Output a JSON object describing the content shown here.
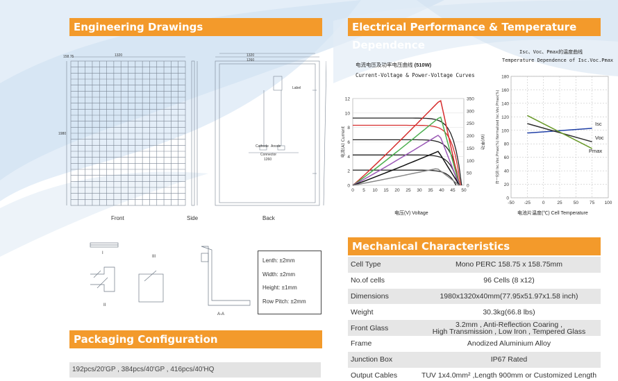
{
  "sections": {
    "engineering": "Engineering Drawings",
    "electrical": "Electrical Performance & Temperature Dependence",
    "packaging": "Packaging Configuration",
    "mechanical": "Mechanical Characteristics"
  },
  "drawings": {
    "front_label": "Front",
    "side_label": "Side",
    "back_label": "Back",
    "front_dims": [
      "1320",
      "158.75",
      "1980"
    ],
    "back_dims": [
      "1320",
      "1260",
      "Cathode",
      "Anode",
      "Connector",
      "1260",
      "Label"
    ],
    "section_labels": [
      "I",
      "II",
      "III",
      "A-A"
    ],
    "tolerances": [
      "Lenth: ±2mm",
      "Width: ±2mm",
      "Height: ±1mm",
      "Row Pitch: ±2mm"
    ]
  },
  "packaging": {
    "text": "192pcs/20'GP , 384pcs/40'GP , 416pcs/40'HQ"
  },
  "iv_chart": {
    "title_cn": "电流电压及功率电压曲线",
    "title_watt": "(510W)",
    "title_en": "Current-Voltage & Power-Voltage Curves",
    "ylabel_left": "电流(A) Current",
    "ylabel_right": "(W)率功",
    "xlabel": "电压(V) Voltage"
  },
  "temp_chart": {
    "title_cn": "Isc、Voc、Pmax的温度曲线",
    "title_en": "Temperature Dependence of Isc.Voc.Pmax",
    "ylabel": "归一化的 Isc.Voc.Pmax(%)  Normalized Isc.Voc.Pmax(%)",
    "xlabel": "电池片温度(℃)  Cell Temperature",
    "series_labels": [
      "Isc",
      "Voc",
      "Pmax"
    ]
  },
  "chart_data": [
    {
      "type": "line",
      "title": "电流电压及功率电压曲线 (510W)",
      "subtitle": "Current-Voltage & Power-Voltage Curves",
      "xlabel": "电压(V) Voltage",
      "ylabel": "电流(A) Current",
      "x_ticks": [
        0,
        5,
        10,
        15,
        20,
        25,
        30,
        35,
        40,
        45,
        50
      ],
      "y_ticks_left": [
        0,
        2,
        4,
        6,
        8,
        10,
        12
      ],
      "y_ticks_right": [
        0,
        50,
        100,
        150,
        200,
        250,
        300,
        350
      ],
      "xlim": [
        0,
        50
      ],
      "ylim": [
        0,
        12
      ],
      "y2lim": [
        0,
        350
      ],
      "iv_series": [
        {
          "color": "#222222",
          "isc": 9.3,
          "voc": 49.0
        },
        {
          "color": "#d62d2d",
          "isc": 8.3,
          "voc": 48.5
        },
        {
          "color": "#222222",
          "isc": 6.3,
          "voc": 48.0
        },
        {
          "color": "#222222",
          "isc": 4.2,
          "voc": 47.5
        },
        {
          "color": "#222222",
          "isc": 2.1,
          "voc": 46.5
        }
      ],
      "pv_series": [
        {
          "color": "#d62d2d",
          "pmax": 345,
          "vmp": 39.5
        },
        {
          "color": "#4caf50",
          "pmax": 278,
          "vmp": 39.5
        },
        {
          "color": "#9b59b6",
          "pmax": 205,
          "vmp": 39.0
        },
        {
          "color": "#111111",
          "pmax": 137,
          "vmp": 38.5
        },
        {
          "color": "#888888",
          "pmax": 68,
          "vmp": 38.0
        }
      ]
    },
    {
      "type": "line",
      "title": "Isc、Voc、Pmax的温度曲线",
      "subtitle": "Temperature Dependence of Isc.Voc.Pmax",
      "xlabel": "电池片温度(℃) Cell Temperature",
      "ylabel": "Normalized Isc.Voc.Pmax(%)",
      "x": [
        -25,
        75
      ],
      "x_ticks": [
        -50,
        -25,
        0,
        25,
        50,
        75,
        100
      ],
      "y_ticks": [
        0,
        20,
        40,
        60,
        80,
        100,
        120,
        140,
        160,
        180
      ],
      "xlim": [
        -50,
        100
      ],
      "ylim": [
        0,
        180
      ],
      "series": [
        {
          "name": "Isc",
          "color": "#1f3fa6",
          "values": [
            96,
            103
          ]
        },
        {
          "name": "Voc",
          "color": "#2e2e2e",
          "values": [
            110,
            83
          ]
        },
        {
          "name": "Pmax",
          "color": "#6a9a2a",
          "values": [
            122,
            73
          ]
        }
      ]
    }
  ],
  "mechanical": {
    "rows": [
      {
        "key": "Cell Type",
        "value": "Mono  PERC 158.75 x 158.75mm"
      },
      {
        "key": "No.of cells",
        "value": "96 Cells (8 x12)"
      },
      {
        "key": "Dimensions",
        "value": "1980x1320x40mm(77.95x51.97x1.58 inch)"
      },
      {
        "key": "Weight",
        "value": "30.3kg(66.8 lbs)"
      },
      {
        "key": "Front Glass",
        "value": "3.2mm ,  Anti-Reflection Coaring ,",
        "value2": "High Transmission , Low Iron , Tempered Glass"
      },
      {
        "key": "Frame",
        "value": "Anodized Aluminium Alloy"
      },
      {
        "key": "Junction Box",
        "value": "IP67 Rated"
      },
      {
        "key": "Output Cables",
        "value": "TUV 1x4.0mm² ,Length 900mm or Customized Length"
      }
    ]
  }
}
